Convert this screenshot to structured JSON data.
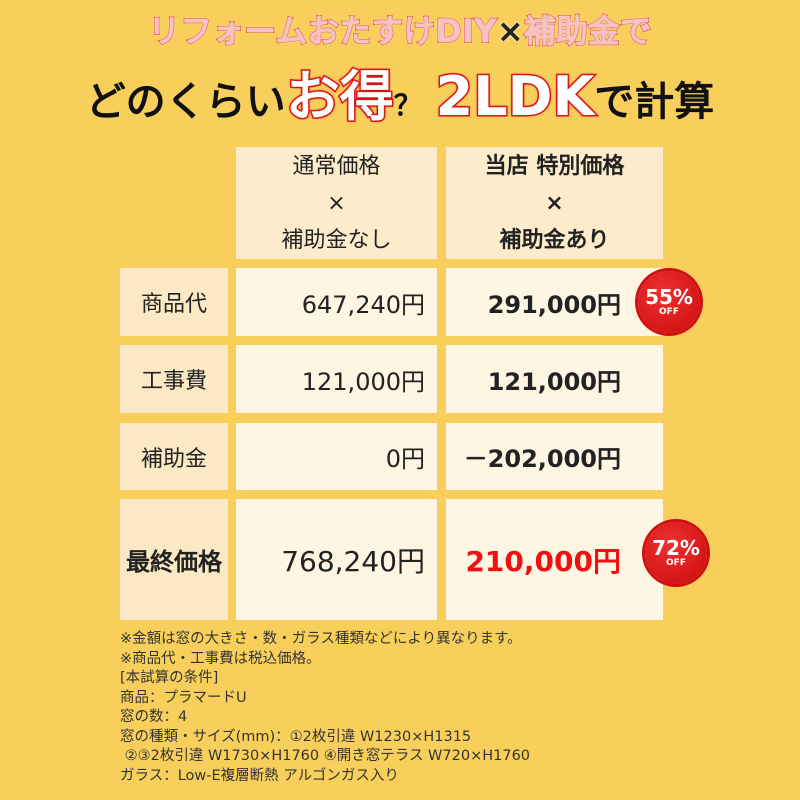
{
  "title": {
    "line1_part1": "リフォームおたすけDIY",
    "line1_x": "×",
    "line1_part2": "補助金で",
    "line2_pre": "どのくらい",
    "line2_big1": "お得",
    "line2_q": "？",
    "line2_big2": "2LDK",
    "line2_post": "で計算"
  },
  "table": {
    "headers": [
      {
        "line1": "通常価格",
        "line2": "×",
        "line3": "補助金なし"
      },
      {
        "line1": "当店 特別価格",
        "line2": "×",
        "line3": "補助金あり"
      }
    ],
    "rows": [
      {
        "label": "商品代",
        "normal": "647,240円",
        "special": "291,000円",
        "badge": {
          "percent": "55%",
          "off": "OFF"
        }
      },
      {
        "label": "工事費",
        "normal": "121,000円",
        "special": "121,000円"
      },
      {
        "label": "補助金",
        "normal": "0円",
        "special": "－202,000円"
      },
      {
        "label": "最終価格",
        "normal": "768,240円",
        "special": "210,000円",
        "badge": {
          "percent": "72%",
          "off": "OFF"
        }
      }
    ]
  },
  "notes": [
    "※金額は窓の大きさ・数・ガラス種類などにより異なります。",
    "※商品代・工事費は税込価格。",
    "[本試算の条件]",
    "商品：プラマードU",
    "窓の数：4",
    "窓の種類・サイズ(mm)：①2枚引違 W1230×H1315",
    " ②③2枚引違 W1730×H1760 ④開き窓テラス W720×H1760",
    "ガラス：Low-E複層断熱 アルゴンガス入り"
  ],
  "colors": {
    "background": "#f9cf5c",
    "accent_red": "#e11111",
    "header_cell": "#fdeccb",
    "value_cell": "#fef5e2"
  }
}
